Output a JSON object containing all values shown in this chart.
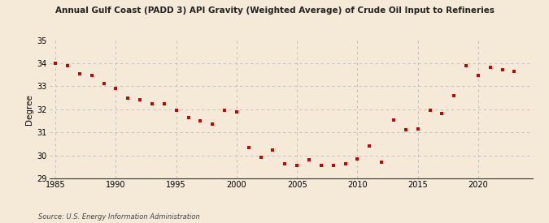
{
  "title": "Annual Gulf Coast (PADD 3) API Gravity (Weighted Average) of Crude Oil Input to Refineries",
  "ylabel": "Degree",
  "source": "Source: U.S. Energy Information Administration",
  "background_color": "#f5ead8",
  "plot_background_color": "#f5ead8",
  "marker_color": "#cc0000",
  "marker": "s",
  "marker_size": 3.5,
  "ylim": [
    29,
    35
  ],
  "xlim": [
    1984.5,
    2024.5
  ],
  "yticks": [
    29,
    30,
    31,
    32,
    33,
    34,
    35
  ],
  "xticks": [
    1985,
    1990,
    1995,
    2000,
    2005,
    2010,
    2015,
    2020
  ],
  "grid_color": "#bbbbbb",
  "data": {
    "years": [
      1985,
      1986,
      1987,
      1988,
      1989,
      1990,
      1991,
      1992,
      1993,
      1994,
      1995,
      1996,
      1997,
      1998,
      1999,
      2000,
      2001,
      2002,
      2003,
      2004,
      2005,
      2006,
      2007,
      2008,
      2009,
      2010,
      2011,
      2012,
      2013,
      2014,
      2015,
      2016,
      2017,
      2018,
      2019,
      2020,
      2021,
      2022,
      2023
    ],
    "values": [
      33.98,
      33.9,
      33.55,
      33.47,
      33.1,
      32.92,
      32.48,
      32.42,
      32.25,
      32.22,
      31.97,
      31.65,
      31.5,
      31.35,
      31.95,
      31.9,
      30.33,
      29.92,
      30.22,
      29.62,
      29.58,
      29.82,
      29.58,
      29.55,
      29.62,
      29.83,
      30.4,
      29.72,
      31.55,
      31.12,
      31.15,
      31.95,
      31.82,
      32.58,
      33.88,
      33.47,
      33.82,
      33.72,
      33.65
    ]
  }
}
